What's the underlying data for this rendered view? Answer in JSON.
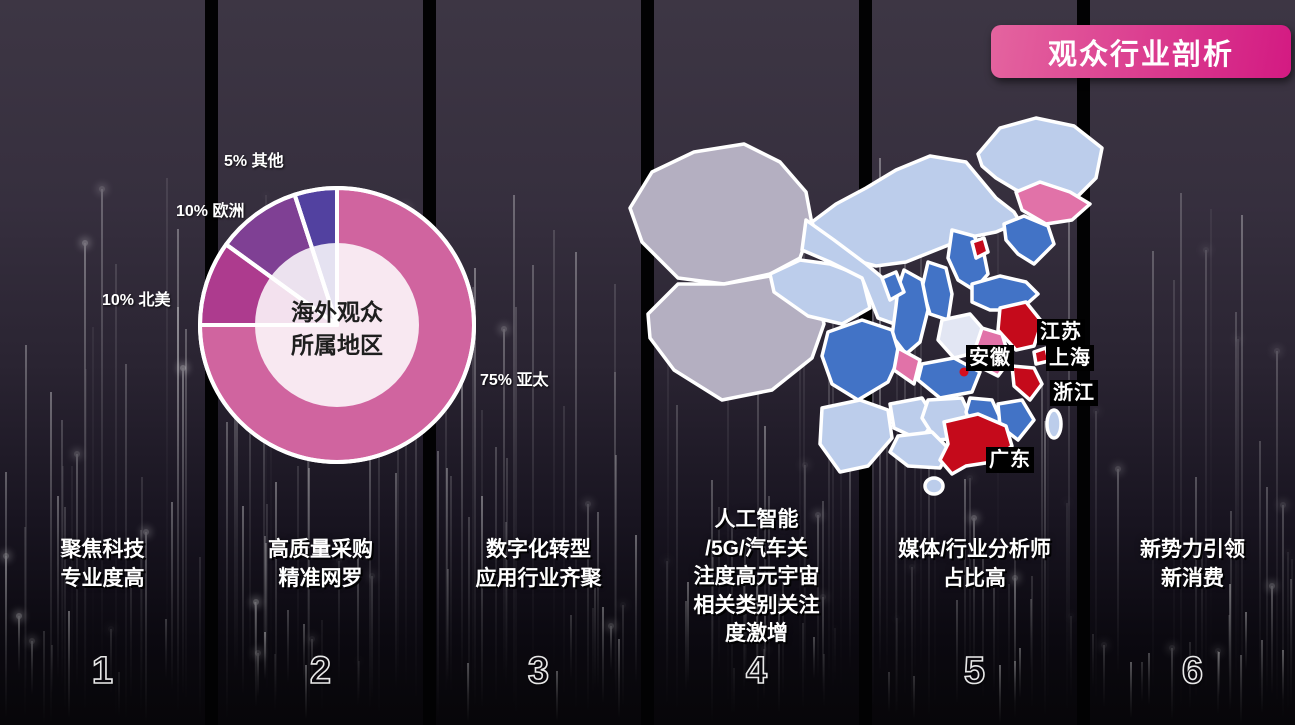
{
  "badge": {
    "label": "观众行业剖析"
  },
  "pie": {
    "center_label": "海外观众\n所属地区",
    "slices": [
      {
        "name": "亚太",
        "pct": "75%",
        "value": 75,
        "color": "#d0649f"
      },
      {
        "name": "北美",
        "pct": "10%",
        "value": 10,
        "color": "#ad3b8e"
      },
      {
        "name": "欧洲",
        "pct": "10%",
        "value": 10,
        "color": "#7f4094"
      },
      {
        "name": "其他",
        "pct": "5%",
        "value": 5,
        "color": "#5241a0"
      }
    ]
  },
  "chart_data": {
    "type": "pie",
    "title": "海外观众所属地区",
    "labels": [
      "亚太",
      "北美",
      "欧洲",
      "其他"
    ],
    "values": [
      75,
      10,
      10,
      5
    ],
    "unit": "%",
    "colors": [
      "#d0649f",
      "#ad3b8e",
      "#7f4094",
      "#5241a0"
    ],
    "donut": true,
    "annotations": [
      "75% 亚太",
      "10% 北美",
      "10% 欧洲",
      "5% 其他"
    ]
  },
  "map": {
    "labels": {
      "jiangsu": "江苏",
      "shanghai": "上海",
      "zhejiang": "浙江",
      "guangdong": "广东",
      "anhui": "安徽"
    },
    "palette": {
      "grey": "#b4afc1",
      "light_blue": "#bccdeb",
      "blue": "#4273c6",
      "pale": "#e2e6f3",
      "pink": "#e172a8",
      "red": "#c50a1b"
    }
  },
  "accent": {
    "badge_gradient_start": "#e4649f",
    "badge_gradient_end": "#d31a82"
  },
  "columns": [
    {
      "number": "1",
      "title": "聚焦科技\n专业度高"
    },
    {
      "number": "2",
      "title": "高质量采购\n精准网罗"
    },
    {
      "number": "3",
      "title": "数字化转型\n应用行业齐聚"
    },
    {
      "number": "4",
      "title": "人工智能\n/5G/汽车关\n注度高元宇宙\n相关类别关注\n度激增"
    },
    {
      "number": "5",
      "title": "媒体/行业分析师\n占比高"
    },
    {
      "number": "6",
      "title": "新势力引领\n新消费"
    }
  ]
}
